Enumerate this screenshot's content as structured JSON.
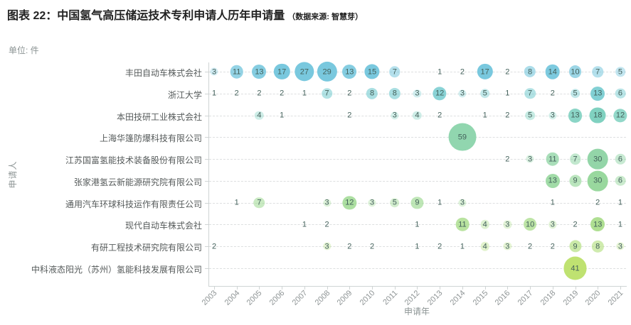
{
  "title": {
    "text": "图表 22：中国氢气高压储运技术专利申请人历年申请量",
    "source_note": "（数据来源: 智慧芽）"
  },
  "unit_label": "单位: 件",
  "chart_data": {
    "type": "scatter",
    "subtype": "bubble",
    "title": "中国氢气高压储运技术专利申请人历年申请量",
    "xlabel": "申请年",
    "ylabel": "申请人",
    "grid": "horizontal-dashed",
    "legend_position": "none",
    "value_text_color": "#44625c",
    "axis_color": "#cfd4d4",
    "x": [
      "2003",
      "2004",
      "2005",
      "2006",
      "2007",
      "2008",
      "2009",
      "2010",
      "2011",
      "2012",
      "2013",
      "2014",
      "2015",
      "2016",
      "2017",
      "2018",
      "2019",
      "2020",
      "2021"
    ],
    "series": [
      {
        "name": "丰田自动车株式会社",
        "color": "#72c5dc",
        "values": [
          3,
          11,
          13,
          17,
          27,
          29,
          13,
          15,
          7,
          null,
          1,
          2,
          17,
          2,
          8,
          14,
          10,
          7,
          5
        ]
      },
      {
        "name": "浙江大学",
        "color": "#6fc9cd",
        "values": [
          1,
          2,
          2,
          2,
          1,
          7,
          2,
          8,
          8,
          3,
          12,
          3,
          5,
          1,
          7,
          2,
          5,
          13,
          6
        ]
      },
      {
        "name": "本田技研工业株式会社",
        "color": "#79cfbd",
        "values": [
          null,
          null,
          4,
          1,
          null,
          null,
          2,
          null,
          3,
          4,
          2,
          null,
          1,
          2,
          5,
          3,
          13,
          18,
          12
        ]
      },
      {
        "name": "上海华篷防爆科技有限公司",
        "color": "#8bd4ab",
        "values": [
          null,
          null,
          null,
          null,
          null,
          null,
          null,
          null,
          null,
          null,
          null,
          59,
          null,
          null,
          null,
          null,
          null,
          null,
          null
        ]
      },
      {
        "name": "江苏国富氢能技术装备股份有限公司",
        "color": "#8dd3a3",
        "values": [
          null,
          null,
          null,
          null,
          null,
          null,
          null,
          null,
          null,
          null,
          null,
          null,
          null,
          2,
          3,
          11,
          7,
          30,
          6
        ]
      },
      {
        "name": "张家港氢云新能源研究院有限公司",
        "color": "#93d699",
        "values": [
          null,
          null,
          null,
          null,
          null,
          null,
          null,
          null,
          null,
          null,
          null,
          null,
          null,
          null,
          null,
          13,
          9,
          30,
          6
        ]
      },
      {
        "name": "通用汽车环球科技运作有限责任公司",
        "color": "#9ad88d",
        "values": [
          null,
          1,
          7,
          null,
          null,
          3,
          12,
          3,
          5,
          9,
          1,
          3,
          null,
          null,
          null,
          1,
          null,
          2,
          1
        ]
      },
      {
        "name": "现代自动车株式会社",
        "color": "#a3da81",
        "values": [
          null,
          null,
          null,
          null,
          1,
          2,
          null,
          null,
          null,
          1,
          null,
          11,
          4,
          3,
          10,
          3,
          2,
          13,
          1
        ]
      },
      {
        "name": "有研工程技术研究院有限公司",
        "color": "#addd76",
        "values": [
          2,
          null,
          null,
          null,
          null,
          3,
          2,
          2,
          null,
          1,
          2,
          1,
          4,
          3,
          2,
          2,
          9,
          8,
          3
        ]
      },
      {
        "name": "中科液态阳光（苏州）氢能科技发展有限公司",
        "color": "#bce069",
        "values": [
          null,
          null,
          null,
          null,
          null,
          null,
          null,
          null,
          null,
          null,
          null,
          null,
          null,
          null,
          null,
          null,
          41,
          null,
          null
        ]
      }
    ]
  }
}
